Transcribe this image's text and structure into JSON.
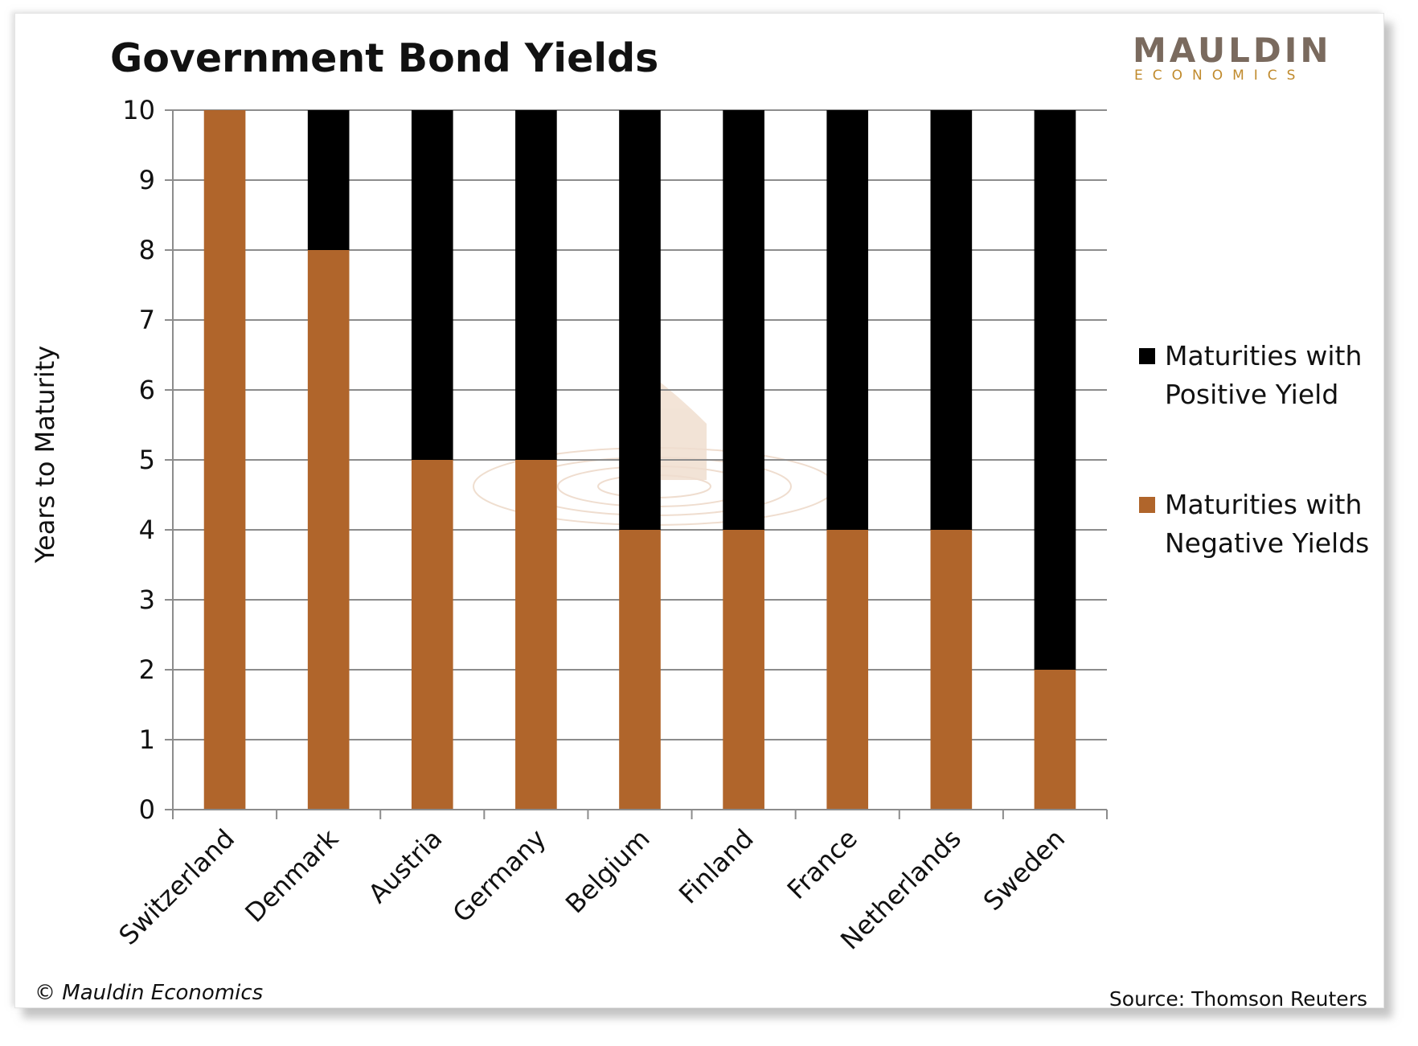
{
  "logo": {
    "line1": "MAULDIN",
    "line2": "ECONOMICS"
  },
  "footer": {
    "copyright": "© Mauldin Economics",
    "source": "Source: Thomson Reuters"
  },
  "colors": {
    "positive": "#000000",
    "negative": "#b0652b",
    "grid": "#8c8c8c",
    "logo_gray": "#7a6a5e",
    "logo_gold": "#c08a2c"
  },
  "chart_data": {
    "type": "bar",
    "stacked": true,
    "title": "Government Bond Yields",
    "ylabel": "Years to Maturity",
    "xlabel": "",
    "ylim": [
      0,
      10
    ],
    "yticks": [
      0,
      1,
      2,
      3,
      4,
      5,
      6,
      7,
      8,
      9,
      10
    ],
    "grid": true,
    "legend_position": "right",
    "categories": [
      "Switzerland",
      "Denmark",
      "Austria",
      "Germany",
      "Belgium",
      "Finland",
      "France",
      "Netherlands",
      "Sweden"
    ],
    "series": [
      {
        "name": "Maturities with Negative Yields",
        "legend_lines": [
          "Maturities with",
          "Negative Yields"
        ],
        "color": "#b0652b",
        "values": [
          10,
          8,
          5,
          5,
          4,
          4,
          4,
          4,
          2
        ]
      },
      {
        "name": "Maturities with Positive Yield",
        "legend_lines": [
          "Maturities with",
          "Positive Yield"
        ],
        "color": "#000000",
        "values": [
          0,
          2,
          5,
          5,
          6,
          6,
          6,
          6,
          8
        ]
      }
    ]
  }
}
